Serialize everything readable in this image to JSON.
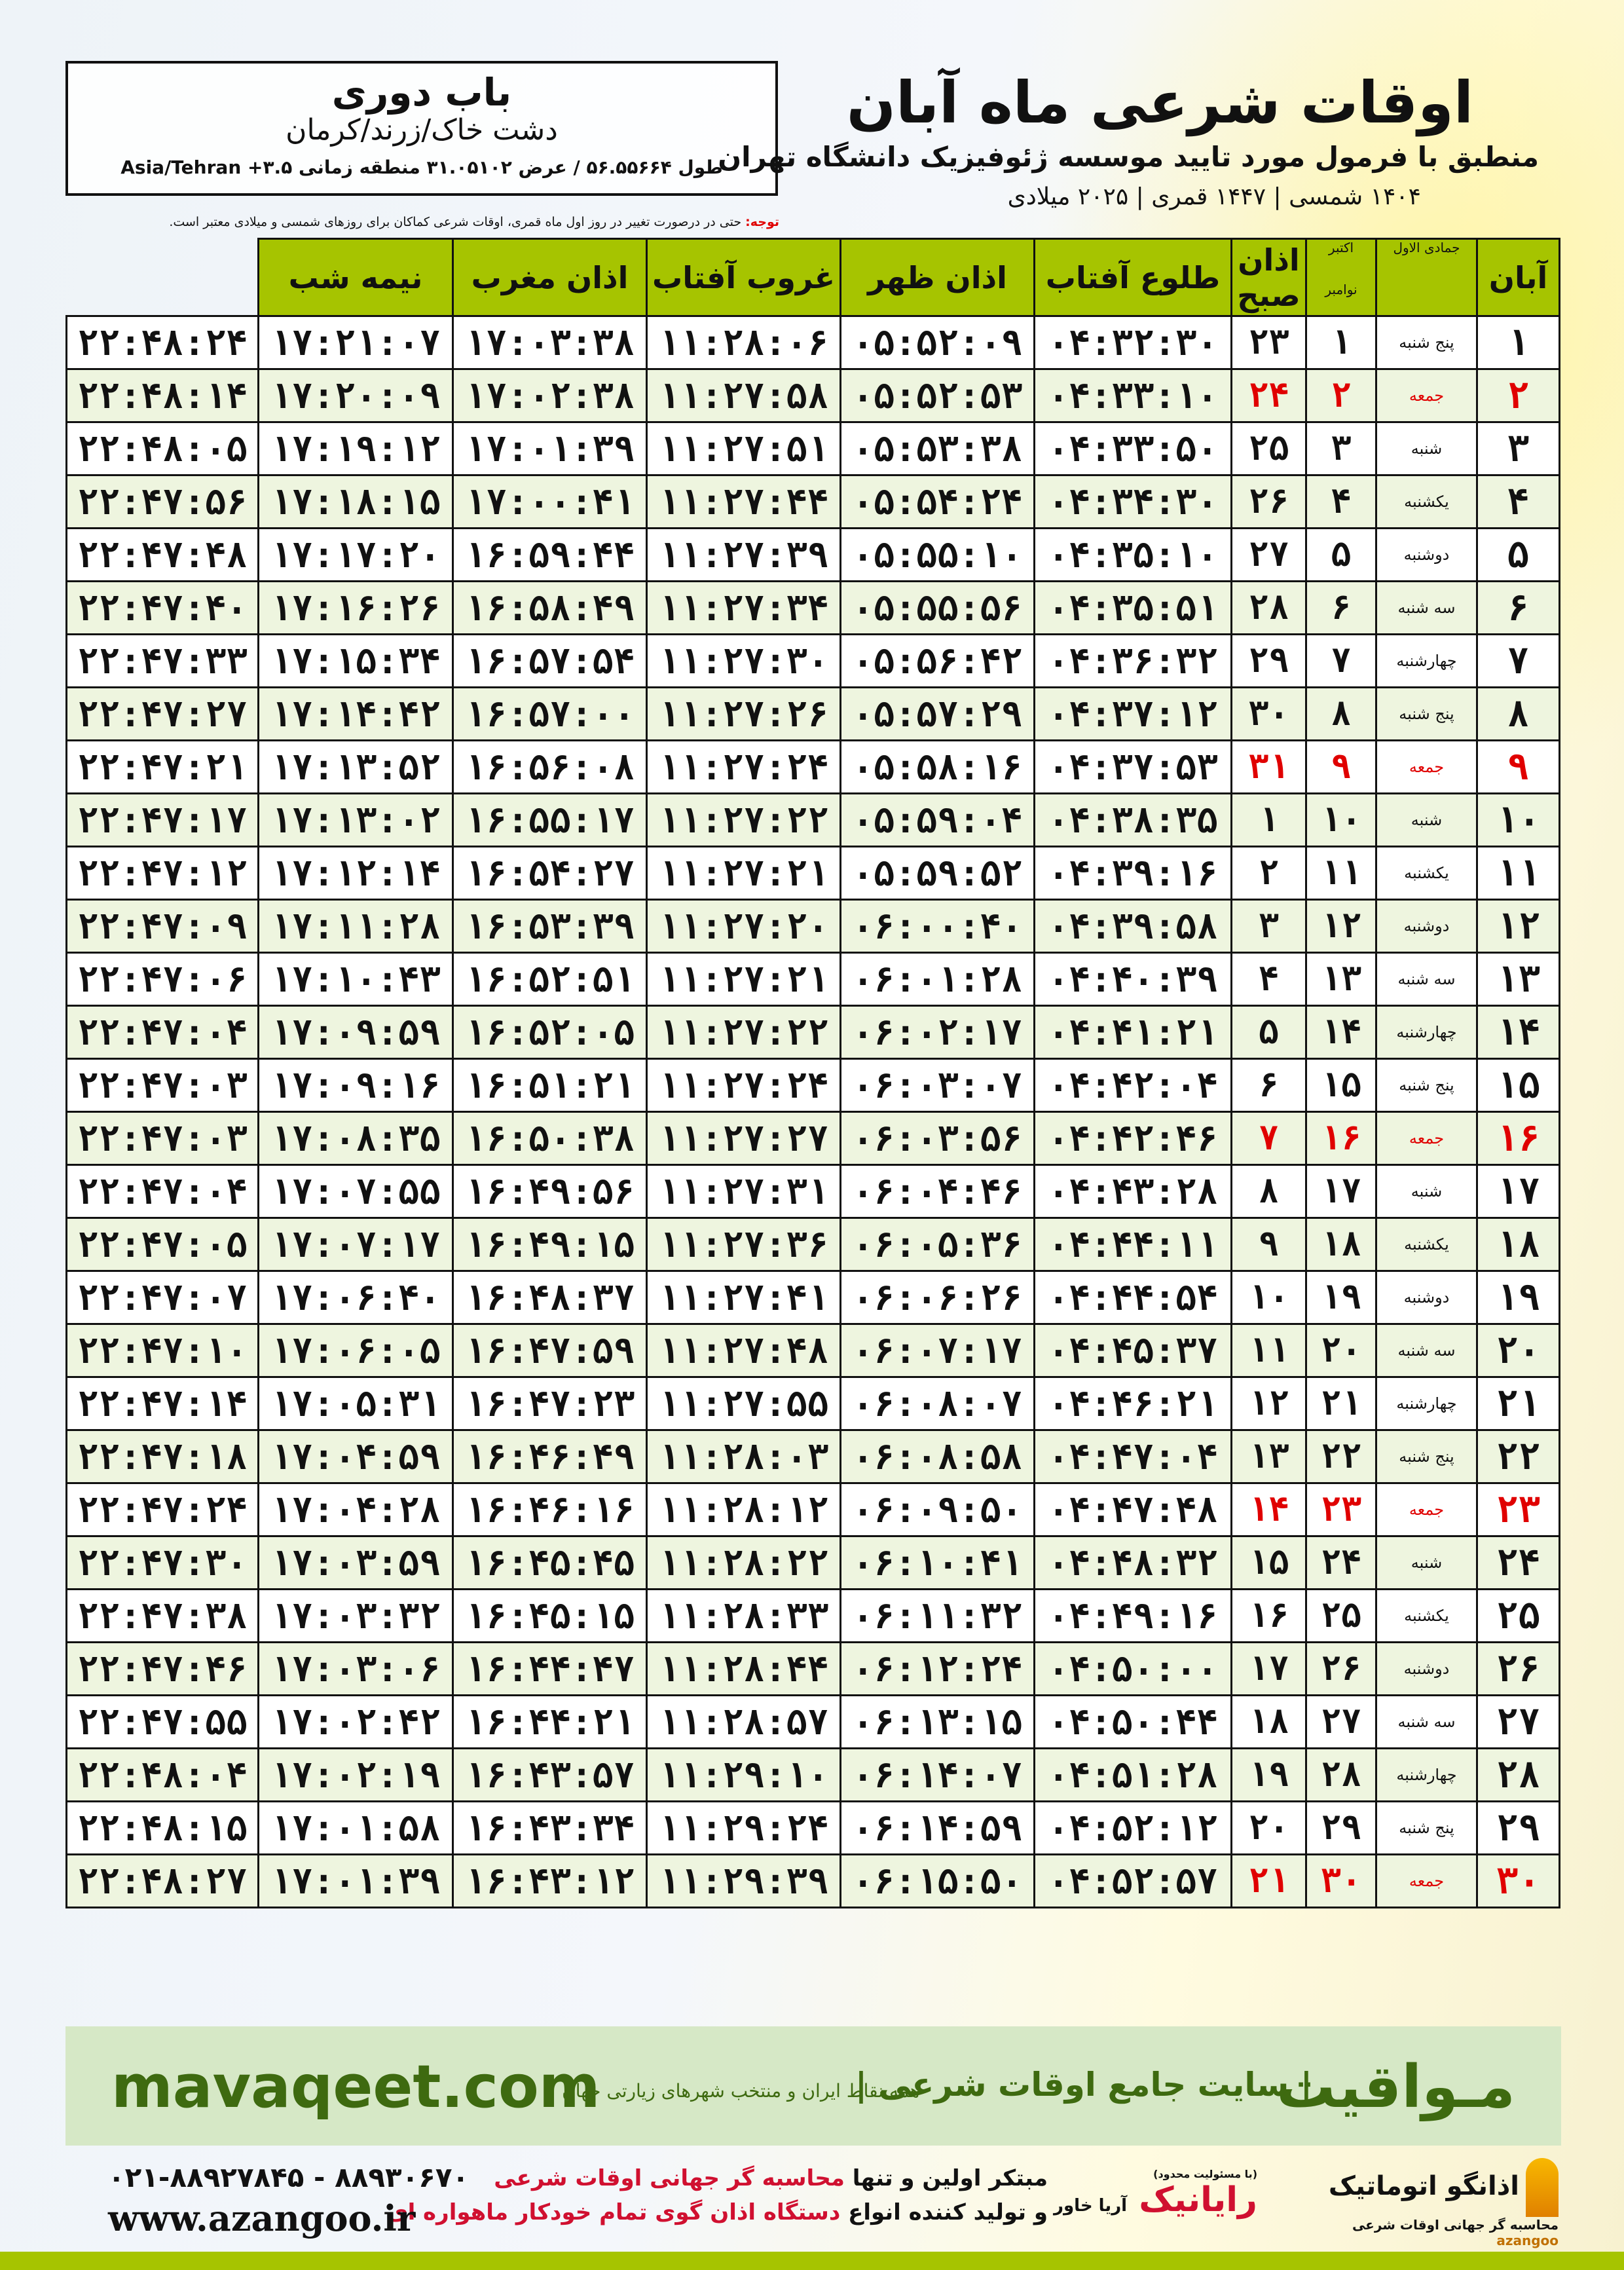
{
  "location": {
    "city": "باب دوری",
    "region": "دشت خاک/زرند/کرمان",
    "coords": "طول ۵۶.۵۵۶۶۴ / عرض ۳۱.۰۵۱۰۲ منطقه زمانی ۳.۵+ Asia/Tehran"
  },
  "header": {
    "title": "اوقات شرعی ماه آبان",
    "subtitle": "منطبق با فرمول مورد تایید موسسه ژئوفیزیک دانشگاه تهران",
    "years": "۱۴۰۴ شمسی | ۱۴۴۷ قمری | ۲۰۲۵ میلادی"
  },
  "note": {
    "label": "توجه:",
    "text": " حتی در درصورت تغییر در روز اول ماه قمری، اوقات شرعی کماکان برای روزهای شمسی و میلادی معتبر است."
  },
  "table": {
    "headers": {
      "month": "آبان",
      "hijri": "جمادی الاول",
      "greg_top": "اکتبر",
      "greg_bottom": "نوامبر",
      "fajr": "اذان صبح",
      "sunrise": "طلوع آفتاب",
      "dhuhr": "اذان ظهر",
      "sunset": "غروب آفتاب",
      "maghrib": "اذان مغرب",
      "midnight": "نیمه شب"
    },
    "holiday_color": "#e00000",
    "header_color": "#a6c400",
    "rows": [
      {
        "day": "۱",
        "weekday": "پنج شنبه",
        "hijri": "۱",
        "greg": "۲۳",
        "fajr": "۰۴:۳۲:۳۰",
        "sunrise": "۰۵:۵۲:۰۹",
        "dhuhr": "۱۱:۲۸:۰۶",
        "sunset": "۱۷:۰۳:۳۸",
        "maghrib": "۱۷:۲۱:۰۷",
        "midnight": "۲۲:۴۸:۲۴",
        "holiday": false
      },
      {
        "day": "۲",
        "weekday": "جمعه",
        "hijri": "۲",
        "greg": "۲۴",
        "fajr": "۰۴:۳۳:۱۰",
        "sunrise": "۰۵:۵۲:۵۳",
        "dhuhr": "۱۱:۲۷:۵۸",
        "sunset": "۱۷:۰۲:۳۸",
        "maghrib": "۱۷:۲۰:۰۹",
        "midnight": "۲۲:۴۸:۱۴",
        "holiday": true
      },
      {
        "day": "۳",
        "weekday": "شنبه",
        "hijri": "۳",
        "greg": "۲۵",
        "fajr": "۰۴:۳۳:۵۰",
        "sunrise": "۰۵:۵۳:۳۸",
        "dhuhr": "۱۱:۲۷:۵۱",
        "sunset": "۱۷:۰۱:۳۹",
        "maghrib": "۱۷:۱۹:۱۲",
        "midnight": "۲۲:۴۸:۰۵",
        "holiday": false
      },
      {
        "day": "۴",
        "weekday": "یکشنبه",
        "hijri": "۴",
        "greg": "۲۶",
        "fajr": "۰۴:۳۴:۳۰",
        "sunrise": "۰۵:۵۴:۲۴",
        "dhuhr": "۱۱:۲۷:۴۴",
        "sunset": "۱۷:۰۰:۴۱",
        "maghrib": "۱۷:۱۸:۱۵",
        "midnight": "۲۲:۴۷:۵۶",
        "holiday": false
      },
      {
        "day": "۵",
        "weekday": "دوشنبه",
        "hijri": "۵",
        "greg": "۲۷",
        "fajr": "۰۴:۳۵:۱۰",
        "sunrise": "۰۵:۵۵:۱۰",
        "dhuhr": "۱۱:۲۷:۳۹",
        "sunset": "۱۶:۵۹:۴۴",
        "maghrib": "۱۷:۱۷:۲۰",
        "midnight": "۲۲:۴۷:۴۸",
        "holiday": false
      },
      {
        "day": "۶",
        "weekday": "سه شنبه",
        "hijri": "۶",
        "greg": "۲۸",
        "fajr": "۰۴:۳۵:۵۱",
        "sunrise": "۰۵:۵۵:۵۶",
        "dhuhr": "۱۱:۲۷:۳۴",
        "sunset": "۱۶:۵۸:۴۹",
        "maghrib": "۱۷:۱۶:۲۶",
        "midnight": "۲۲:۴۷:۴۰",
        "holiday": false
      },
      {
        "day": "۷",
        "weekday": "چهارشنبه",
        "hijri": "۷",
        "greg": "۲۹",
        "fajr": "۰۴:۳۶:۳۲",
        "sunrise": "۰۵:۵۶:۴۲",
        "dhuhr": "۱۱:۲۷:۳۰",
        "sunset": "۱۶:۵۷:۵۴",
        "maghrib": "۱۷:۱۵:۳۴",
        "midnight": "۲۲:۴۷:۳۳",
        "holiday": false
      },
      {
        "day": "۸",
        "weekday": "پنج شنبه",
        "hijri": "۸",
        "greg": "۳۰",
        "fajr": "۰۴:۳۷:۱۲",
        "sunrise": "۰۵:۵۷:۲۹",
        "dhuhr": "۱۱:۲۷:۲۶",
        "sunset": "۱۶:۵۷:۰۰",
        "maghrib": "۱۷:۱۴:۴۲",
        "midnight": "۲۲:۴۷:۲۷",
        "holiday": false
      },
      {
        "day": "۹",
        "weekday": "جمعه",
        "hijri": "۹",
        "greg": "۳۱",
        "fajr": "۰۴:۳۷:۵۳",
        "sunrise": "۰۵:۵۸:۱۶",
        "dhuhr": "۱۱:۲۷:۲۴",
        "sunset": "۱۶:۵۶:۰۸",
        "maghrib": "۱۷:۱۳:۵۲",
        "midnight": "۲۲:۴۷:۲۱",
        "holiday": true
      },
      {
        "day": "۱۰",
        "weekday": "شنبه",
        "hijri": "۱۰",
        "greg": "۱",
        "fajr": "۰۴:۳۸:۳۵",
        "sunrise": "۰۵:۵۹:۰۴",
        "dhuhr": "۱۱:۲۷:۲۲",
        "sunset": "۱۶:۵۵:۱۷",
        "maghrib": "۱۷:۱۳:۰۲",
        "midnight": "۲۲:۴۷:۱۷",
        "holiday": false
      },
      {
        "day": "۱۱",
        "weekday": "یکشنبه",
        "hijri": "۱۱",
        "greg": "۲",
        "fajr": "۰۴:۳۹:۱۶",
        "sunrise": "۰۵:۵۹:۵۲",
        "dhuhr": "۱۱:۲۷:۲۱",
        "sunset": "۱۶:۵۴:۲۷",
        "maghrib": "۱۷:۱۲:۱۴",
        "midnight": "۲۲:۴۷:۱۲",
        "holiday": false
      },
      {
        "day": "۱۲",
        "weekday": "دوشنبه",
        "hijri": "۱۲",
        "greg": "۳",
        "fajr": "۰۴:۳۹:۵۸",
        "sunrise": "۰۶:۰۰:۴۰",
        "dhuhr": "۱۱:۲۷:۲۰",
        "sunset": "۱۶:۵۳:۳۹",
        "maghrib": "۱۷:۱۱:۲۸",
        "midnight": "۲۲:۴۷:۰۹",
        "holiday": false
      },
      {
        "day": "۱۳",
        "weekday": "سه شنبه",
        "hijri": "۱۳",
        "greg": "۴",
        "fajr": "۰۴:۴۰:۳۹",
        "sunrise": "۰۶:۰۱:۲۸",
        "dhuhr": "۱۱:۲۷:۲۱",
        "sunset": "۱۶:۵۲:۵۱",
        "maghrib": "۱۷:۱۰:۴۳",
        "midnight": "۲۲:۴۷:۰۶",
        "holiday": false
      },
      {
        "day": "۱۴",
        "weekday": "چهارشنبه",
        "hijri": "۱۴",
        "greg": "۵",
        "fajr": "۰۴:۴۱:۲۱",
        "sunrise": "۰۶:۰۲:۱۷",
        "dhuhr": "۱۱:۲۷:۲۲",
        "sunset": "۱۶:۵۲:۰۵",
        "maghrib": "۱۷:۰۹:۵۹",
        "midnight": "۲۲:۴۷:۰۴",
        "holiday": false
      },
      {
        "day": "۱۵",
        "weekday": "پنج شنبه",
        "hijri": "۱۵",
        "greg": "۶",
        "fajr": "۰۴:۴۲:۰۴",
        "sunrise": "۰۶:۰۳:۰۷",
        "dhuhr": "۱۱:۲۷:۲۴",
        "sunset": "۱۶:۵۱:۲۱",
        "maghrib": "۱۷:۰۹:۱۶",
        "midnight": "۲۲:۴۷:۰۳",
        "holiday": false
      },
      {
        "day": "۱۶",
        "weekday": "جمعه",
        "hijri": "۱۶",
        "greg": "۷",
        "fajr": "۰۴:۴۲:۴۶",
        "sunrise": "۰۶:۰۳:۵۶",
        "dhuhr": "۱۱:۲۷:۲۷",
        "sunset": "۱۶:۵۰:۳۸",
        "maghrib": "۱۷:۰۸:۳۵",
        "midnight": "۲۲:۴۷:۰۳",
        "holiday": true
      },
      {
        "day": "۱۷",
        "weekday": "شنبه",
        "hijri": "۱۷",
        "greg": "۸",
        "fajr": "۰۴:۴۳:۲۸",
        "sunrise": "۰۶:۰۴:۴۶",
        "dhuhr": "۱۱:۲۷:۳۱",
        "sunset": "۱۶:۴۹:۵۶",
        "maghrib": "۱۷:۰۷:۵۵",
        "midnight": "۲۲:۴۷:۰۴",
        "holiday": false
      },
      {
        "day": "۱۸",
        "weekday": "یکشنبه",
        "hijri": "۱۸",
        "greg": "۹",
        "fajr": "۰۴:۴۴:۱۱",
        "sunrise": "۰۶:۰۵:۳۶",
        "dhuhr": "۱۱:۲۷:۳۶",
        "sunset": "۱۶:۴۹:۱۵",
        "maghrib": "۱۷:۰۷:۱۷",
        "midnight": "۲۲:۴۷:۰۵",
        "holiday": false
      },
      {
        "day": "۱۹",
        "weekday": "دوشنبه",
        "hijri": "۱۹",
        "greg": "۱۰",
        "fajr": "۰۴:۴۴:۵۴",
        "sunrise": "۰۶:۰۶:۲۶",
        "dhuhr": "۱۱:۲۷:۴۱",
        "sunset": "۱۶:۴۸:۳۷",
        "maghrib": "۱۷:۰۶:۴۰",
        "midnight": "۲۲:۴۷:۰۷",
        "holiday": false
      },
      {
        "day": "۲۰",
        "weekday": "سه شنبه",
        "hijri": "۲۰",
        "greg": "۱۱",
        "fajr": "۰۴:۴۵:۳۷",
        "sunrise": "۰۶:۰۷:۱۷",
        "dhuhr": "۱۱:۲۷:۴۸",
        "sunset": "۱۶:۴۷:۵۹",
        "maghrib": "۱۷:۰۶:۰۵",
        "midnight": "۲۲:۴۷:۱۰",
        "holiday": false
      },
      {
        "day": "۲۱",
        "weekday": "چهارشنبه",
        "hijri": "۲۱",
        "greg": "۱۲",
        "fajr": "۰۴:۴۶:۲۱",
        "sunrise": "۰۶:۰۸:۰۷",
        "dhuhr": "۱۱:۲۷:۵۵",
        "sunset": "۱۶:۴۷:۲۳",
        "maghrib": "۱۷:۰۵:۳۱",
        "midnight": "۲۲:۴۷:۱۴",
        "holiday": false
      },
      {
        "day": "۲۲",
        "weekday": "پنج شنبه",
        "hijri": "۲۲",
        "greg": "۱۳",
        "fajr": "۰۴:۴۷:۰۴",
        "sunrise": "۰۶:۰۸:۵۸",
        "dhuhr": "۱۱:۲۸:۰۳",
        "sunset": "۱۶:۴۶:۴۹",
        "maghrib": "۱۷:۰۴:۵۹",
        "midnight": "۲۲:۴۷:۱۸",
        "holiday": false
      },
      {
        "day": "۲۳",
        "weekday": "جمعه",
        "hijri": "۲۳",
        "greg": "۱۴",
        "fajr": "۰۴:۴۷:۴۸",
        "sunrise": "۰۶:۰۹:۵۰",
        "dhuhr": "۱۱:۲۸:۱۲",
        "sunset": "۱۶:۴۶:۱۶",
        "maghrib": "۱۷:۰۴:۲۸",
        "midnight": "۲۲:۴۷:۲۴",
        "holiday": true
      },
      {
        "day": "۲۴",
        "weekday": "شنبه",
        "hijri": "۲۴",
        "greg": "۱۵",
        "fajr": "۰۴:۴۸:۳۲",
        "sunrise": "۰۶:۱۰:۴۱",
        "dhuhr": "۱۱:۲۸:۲۲",
        "sunset": "۱۶:۴۵:۴۵",
        "maghrib": "۱۷:۰۳:۵۹",
        "midnight": "۲۲:۴۷:۳۰",
        "holiday": false
      },
      {
        "day": "۲۵",
        "weekday": "یکشنبه",
        "hijri": "۲۵",
        "greg": "۱۶",
        "fajr": "۰۴:۴۹:۱۶",
        "sunrise": "۰۶:۱۱:۳۲",
        "dhuhr": "۱۱:۲۸:۳۳",
        "sunset": "۱۶:۴۵:۱۵",
        "maghrib": "۱۷:۰۳:۳۲",
        "midnight": "۲۲:۴۷:۳۸",
        "holiday": false
      },
      {
        "day": "۲۶",
        "weekday": "دوشنبه",
        "hijri": "۲۶",
        "greg": "۱۷",
        "fajr": "۰۴:۵۰:۰۰",
        "sunrise": "۰۶:۱۲:۲۴",
        "dhuhr": "۱۱:۲۸:۴۴",
        "sunset": "۱۶:۴۴:۴۷",
        "maghrib": "۱۷:۰۳:۰۶",
        "midnight": "۲۲:۴۷:۴۶",
        "holiday": false
      },
      {
        "day": "۲۷",
        "weekday": "سه شنبه",
        "hijri": "۲۷",
        "greg": "۱۸",
        "fajr": "۰۴:۵۰:۴۴",
        "sunrise": "۰۶:۱۳:۱۵",
        "dhuhr": "۱۱:۲۸:۵۷",
        "sunset": "۱۶:۴۴:۲۱",
        "maghrib": "۱۷:۰۲:۴۲",
        "midnight": "۲۲:۴۷:۵۵",
        "holiday": false
      },
      {
        "day": "۲۸",
        "weekday": "چهارشنبه",
        "hijri": "۲۸",
        "greg": "۱۹",
        "fajr": "۰۴:۵۱:۲۸",
        "sunrise": "۰۶:۱۴:۰۷",
        "dhuhr": "۱۱:۲۹:۱۰",
        "sunset": "۱۶:۴۳:۵۷",
        "maghrib": "۱۷:۰۲:۱۹",
        "midnight": "۲۲:۴۸:۰۴",
        "holiday": false
      },
      {
        "day": "۲۹",
        "weekday": "پنج شنبه",
        "hijri": "۲۹",
        "greg": "۲۰",
        "fajr": "۰۴:۵۲:۱۲",
        "sunrise": "۰۶:۱۴:۵۹",
        "dhuhr": "۱۱:۲۹:۲۴",
        "sunset": "۱۶:۴۳:۳۴",
        "maghrib": "۱۷:۰۱:۵۸",
        "midnight": "۲۲:۴۸:۱۵",
        "holiday": false
      },
      {
        "day": "۳۰",
        "weekday": "جمعه",
        "hijri": "۳۰",
        "greg": "۲۱",
        "fajr": "۰۴:۵۲:۵۷",
        "sunrise": "۰۶:۱۵:۵۰",
        "dhuhr": "۱۱:۲۹:۳۹",
        "sunset": "۱۶:۴۳:۱۲",
        "maghrib": "۱۷:۰۱:۳۹",
        "midnight": "۲۲:۴۸:۲۷",
        "holiday": true
      }
    ]
  },
  "banner": {
    "brand": "مـواقیت",
    "slogan": "| سایت جامع اوقات شرعی |",
    "sub": "همه نقاط ایران و منتخب شهرهای زیارتی جهان",
    "url": "mavaqeet.com",
    "color": "#3e6a10"
  },
  "footer": {
    "phone": "۰۲۱-۸۸۹۲۷۸۴۵ - ۸۸۹۳۰۶۷۰",
    "website": "www.azangoo.ir",
    "promo_line1_a": "مبتکر اولین و تنها ",
    "promo_line1_b": "محاسبه گر جهانی اوقات شرعی",
    "promo_line2_a": "و تولید کننده انواع ",
    "promo_line2_b": "دستگاه اذان گوی تمام خودکار ماهواره ای",
    "logo_azangoo": "اذانگو اتوماتیک",
    "logo_azangoo_sub": "محاسبه گر جهانی اوقات شرعی",
    "logo_azangoo_en": "azangoo",
    "logo_rayanik": "رایانیک",
    "logo_rayanik_sub": "آریا خاور",
    "logo_rayanik_note": "(با مسئولیت محدود)"
  }
}
